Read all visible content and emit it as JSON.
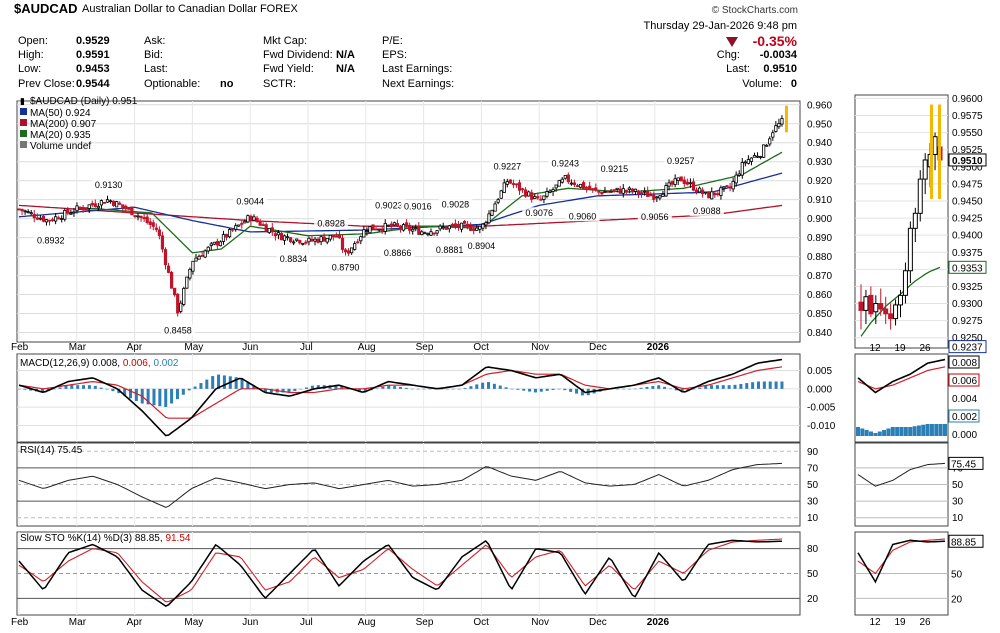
{
  "header": {
    "symbol": "$AUDCAD",
    "description": "Australian Dollar to Canadian Dollar",
    "exchange": "FOREX",
    "copyright": "© StockCharts.com",
    "datetime": "Thursday  29-Jan-2026  9:48 pm",
    "change_pct": "-0.35%",
    "change_label": "Chg:",
    "change_value": "-0.0034",
    "last_label": "Last:",
    "last_value": "0.9510",
    "volume_label": "Volume:",
    "volume_value": "0",
    "quote": [
      {
        "label": "Open:",
        "value": "0.9529"
      },
      {
        "label": "High:",
        "value": "0.9591"
      },
      {
        "label": "Low:",
        "value": "0.9453"
      },
      {
        "label": "Prev Close:",
        "value": "0.9544"
      }
    ],
    "quote2": [
      {
        "label": "Ask:",
        "value": ""
      },
      {
        "label": "Bid:",
        "value": ""
      },
      {
        "label": "Last:",
        "value": ""
      },
      {
        "label": "Optionable:",
        "value": "no"
      }
    ],
    "quote3": [
      {
        "label": "Mkt Cap:",
        "value": ""
      },
      {
        "label": "Fwd Dividend:",
        "value": "N/A"
      },
      {
        "label": "Fwd Yield:",
        "value": "N/A"
      },
      {
        "label": "SCTR:",
        "value": ""
      }
    ],
    "quote4": [
      {
        "label": "P/E:"
      },
      {
        "label": "EPS:"
      },
      {
        "label": "Last Earnings:"
      },
      {
        "label": "Next Earnings:"
      }
    ]
  },
  "colors": {
    "up": "#000000",
    "down": "#c0142a",
    "ma50": "#16309a",
    "ma200": "#b0122c",
    "ma20": "#1d6b1d",
    "macd_hist": "#2a7fb6",
    "rsi_fill": "#4d7a4d",
    "highlight": "#f5b700"
  },
  "chart_data": [
    {
      "type": "candlestick",
      "title": "$AUDCAD (Daily) 0.951",
      "series": [
        {
          "name": "MA(50) 0.924",
          "role": "ma50"
        },
        {
          "name": "MA(200) 0.907",
          "role": "ma200"
        },
        {
          "name": "MA(20) 0.935",
          "role": "ma20"
        },
        {
          "name": "Volume undef",
          "role": "volume"
        }
      ],
      "x_labels": [
        "Feb",
        "Mar",
        "Apr",
        "May",
        "Jun",
        "Jul",
        "Aug",
        "Sep",
        "Oct",
        "Nov",
        "Dec",
        "2026"
      ],
      "y_ticks": [
        "0.960",
        "0.950",
        "0.940",
        "0.930",
        "0.920",
        "0.910",
        "0.900",
        "0.890",
        "0.880",
        "0.870",
        "0.860",
        "0.850",
        "0.840"
      ],
      "ylim": [
        0.835,
        0.962
      ],
      "annotations": [
        {
          "label": "0.8932",
          "month": 0.55,
          "value": 0.8932,
          "pos": "below"
        },
        {
          "label": "0.9130",
          "month": 1.55,
          "value": 0.913,
          "pos": "above"
        },
        {
          "label": "0.8458",
          "month": 2.75,
          "value": 0.8458,
          "pos": "below"
        },
        {
          "label": "0.9044",
          "month": 4.0,
          "value": 0.9044,
          "pos": "above"
        },
        {
          "label": "0.8834",
          "month": 4.75,
          "value": 0.8834,
          "pos": "below"
        },
        {
          "label": "0.8928",
          "month": 5.4,
          "value": 0.8928,
          "pos": "above"
        },
        {
          "label": "0.8790",
          "month": 5.65,
          "value": 0.879,
          "pos": "below"
        },
        {
          "label": "0.9023",
          "month": 6.4,
          "value": 0.9023,
          "pos": "above"
        },
        {
          "label": "0.8866",
          "month": 6.55,
          "value": 0.8866,
          "pos": "below"
        },
        {
          "label": "0.9016",
          "month": 6.9,
          "value": 0.9016,
          "pos": "above"
        },
        {
          "label": "0.8881",
          "month": 7.45,
          "value": 0.8881,
          "pos": "below"
        },
        {
          "label": "0.9028",
          "month": 7.55,
          "value": 0.9028,
          "pos": "above"
        },
        {
          "label": "0.8904",
          "month": 8.0,
          "value": 0.8904,
          "pos": "below"
        },
        {
          "label": "0.9227",
          "month": 8.45,
          "value": 0.9227,
          "pos": "above"
        },
        {
          "label": "0.9076",
          "month": 9.0,
          "value": 0.9076,
          "pos": "below"
        },
        {
          "label": "0.9243",
          "month": 9.45,
          "value": 0.9243,
          "pos": "above"
        },
        {
          "label": "0.9060",
          "month": 9.75,
          "value": 0.906,
          "pos": "below"
        },
        {
          "label": "0.9215",
          "month": 10.3,
          "value": 0.9215,
          "pos": "above"
        },
        {
          "label": "0.9056",
          "month": 11.0,
          "value": 0.9056,
          "pos": "below"
        },
        {
          "label": "0.9257",
          "month": 11.45,
          "value": 0.9257,
          "pos": "above"
        },
        {
          "label": "0.9088",
          "month": 11.9,
          "value": 0.9088,
          "pos": "below"
        }
      ],
      "ohlc_keypoints": [
        {
          "month": 0.0,
          "close": 0.905
        },
        {
          "month": 0.5,
          "close": 0.899
        },
        {
          "month": 1.0,
          "close": 0.905
        },
        {
          "month": 1.55,
          "close": 0.91
        },
        {
          "month": 2.0,
          "close": 0.903
        },
        {
          "month": 2.4,
          "close": 0.894
        },
        {
          "month": 2.75,
          "close": 0.851
        },
        {
          "month": 3.0,
          "close": 0.878
        },
        {
          "month": 3.5,
          "close": 0.889
        },
        {
          "month": 4.0,
          "close": 0.901
        },
        {
          "month": 4.5,
          "close": 0.891
        },
        {
          "month": 5.0,
          "close": 0.888
        },
        {
          "month": 5.5,
          "close": 0.891
        },
        {
          "month": 5.65,
          "close": 0.881
        },
        {
          "month": 6.0,
          "close": 0.895
        },
        {
          "month": 6.5,
          "close": 0.896
        },
        {
          "month": 7.0,
          "close": 0.893
        },
        {
          "month": 7.5,
          "close": 0.896
        },
        {
          "month": 8.0,
          "close": 0.895
        },
        {
          "month": 8.45,
          "close": 0.92
        },
        {
          "month": 9.0,
          "close": 0.909
        },
        {
          "month": 9.45,
          "close": 0.921
        },
        {
          "month": 10.0,
          "close": 0.914
        },
        {
          "month": 10.5,
          "close": 0.915
        },
        {
          "month": 11.0,
          "close": 0.912
        },
        {
          "month": 11.45,
          "close": 0.921
        },
        {
          "month": 11.9,
          "close": 0.912
        },
        {
          "month": 12.3,
          "close": 0.916
        },
        {
          "month": 12.55,
          "close": 0.93
        },
        {
          "month": 12.85,
          "close": 0.935
        },
        {
          "month": 13.05,
          "close": 0.947
        },
        {
          "month": 13.2,
          "close": 0.951
        }
      ],
      "ma50_keypoints": [
        {
          "month": 0.0,
          "value": 0.901
        },
        {
          "month": 2.0,
          "value": 0.906
        },
        {
          "month": 3.0,
          "value": 0.899
        },
        {
          "month": 4.0,
          "value": 0.893
        },
        {
          "month": 6.0,
          "value": 0.894
        },
        {
          "month": 8.0,
          "value": 0.897
        },
        {
          "month": 9.0,
          "value": 0.907
        },
        {
          "month": 10.0,
          "value": 0.912
        },
        {
          "month": 11.0,
          "value": 0.913
        },
        {
          "month": 12.0,
          "value": 0.914
        },
        {
          "month": 13.2,
          "value": 0.924
        }
      ],
      "ma200_keypoints": [
        {
          "month": 0.0,
          "value": 0.907
        },
        {
          "month": 2.0,
          "value": 0.903
        },
        {
          "month": 4.0,
          "value": 0.899
        },
        {
          "month": 6.0,
          "value": 0.896
        },
        {
          "month": 8.0,
          "value": 0.896
        },
        {
          "month": 10.0,
          "value": 0.899
        },
        {
          "month": 12.0,
          "value": 0.902
        },
        {
          "month": 13.2,
          "value": 0.907
        }
      ],
      "ma20_keypoints": [
        {
          "month": 1.0,
          "value": 0.906
        },
        {
          "month": 2.3,
          "value": 0.903
        },
        {
          "month": 3.0,
          "value": 0.882
        },
        {
          "month": 3.5,
          "value": 0.884
        },
        {
          "month": 4.0,
          "value": 0.896
        },
        {
          "month": 5.0,
          "value": 0.891
        },
        {
          "month": 6.0,
          "value": 0.892
        },
        {
          "month": 7.0,
          "value": 0.896
        },
        {
          "month": 8.0,
          "value": 0.895
        },
        {
          "month": 8.7,
          "value": 0.912
        },
        {
          "month": 9.5,
          "value": 0.916
        },
        {
          "month": 10.5,
          "value": 0.914
        },
        {
          "month": 11.5,
          "value": 0.916
        },
        {
          "month": 12.5,
          "value": 0.923
        },
        {
          "month": 13.2,
          "value": 0.935
        }
      ]
    },
    {
      "type": "candlestick",
      "title": "",
      "x_labels": [
        "12",
        "19",
        "26"
      ],
      "y_ticks": [
        "0.9600",
        "0.9575",
        "0.9550",
        "0.9525",
        "0.9500",
        "0.9475",
        "0.9450",
        "0.9425",
        "0.9400",
        "0.9375",
        "0.9350",
        "0.9325",
        "0.9300",
        "0.9275",
        "0.9250"
      ],
      "ylim": [
        0.9235,
        0.9605
      ],
      "markers": [
        {
          "label": "0.9510",
          "value": 0.951
        },
        {
          "label": "0.9353",
          "value": 0.9353
        },
        {
          "label": "0.9237",
          "value": 0.9237
        }
      ],
      "ohlc": [
        {
          "o": 0.9302,
          "h": 0.9328,
          "l": 0.9262,
          "c": 0.929
        },
        {
          "o": 0.929,
          "h": 0.932,
          "l": 0.927,
          "c": 0.931
        },
        {
          "o": 0.9312,
          "h": 0.9325,
          "l": 0.928,
          "c": 0.9285
        },
        {
          "o": 0.9288,
          "h": 0.9312,
          "l": 0.927,
          "c": 0.93
        },
        {
          "o": 0.93,
          "h": 0.9322,
          "l": 0.9282,
          "c": 0.9292
        },
        {
          "o": 0.9292,
          "h": 0.931,
          "l": 0.927,
          "c": 0.9285
        },
        {
          "o": 0.9285,
          "h": 0.93,
          "l": 0.9262,
          "c": 0.9278
        },
        {
          "o": 0.9278,
          "h": 0.9306,
          "l": 0.9268,
          "c": 0.9298
        },
        {
          "o": 0.9298,
          "h": 0.932,
          "l": 0.928,
          "c": 0.9312
        },
        {
          "o": 0.9312,
          "h": 0.936,
          "l": 0.93,
          "c": 0.9348
        },
        {
          "o": 0.9348,
          "h": 0.942,
          "l": 0.933,
          "c": 0.941
        },
        {
          "o": 0.941,
          "h": 0.944,
          "l": 0.939,
          "c": 0.9432
        },
        {
          "o": 0.9432,
          "h": 0.9495,
          "l": 0.942,
          "c": 0.9482
        },
        {
          "o": 0.9482,
          "h": 0.952,
          "l": 0.946,
          "c": 0.951
        },
        {
          "o": 0.95,
          "h": 0.9535,
          "l": 0.947,
          "c": 0.9518
        },
        {
          "o": 0.9518,
          "h": 0.955,
          "l": 0.9495,
          "c": 0.9544
        },
        {
          "o": 0.9529,
          "h": 0.9591,
          "l": 0.9453,
          "c": 0.951
        }
      ],
      "ma20": [
        0.9252,
        0.9262,
        0.9272,
        0.928,
        0.9288,
        0.9296,
        0.9302,
        0.9308,
        0.9314,
        0.932,
        0.9327,
        0.9333,
        0.9338,
        0.9343,
        0.9347,
        0.935,
        0.9353
      ]
    },
    {
      "type": "line",
      "title": "MACD(12,26,9) 0.008, 0.006, 0.002",
      "series": [
        {
          "name": "MACD",
          "values": [
            0.001,
            -0.001,
            0.002,
            0.003,
            0.0,
            -0.006,
            -0.013,
            -0.008,
            0.0,
            0.003,
            -0.001,
            -0.002,
            0.0,
            0.001,
            -0.001,
            0.002,
            0.001,
            0.0,
            0.001,
            0.006,
            0.005,
            0.003,
            0.004,
            -0.001,
            0.0,
            0.001,
            0.003,
            -0.001,
            0.002,
            0.004,
            0.007,
            0.008
          ]
        },
        {
          "name": "Signal",
          "values": [
            0.001,
            0.0,
            0.001,
            0.002,
            0.001,
            -0.002,
            -0.008,
            -0.008,
            -0.004,
            0.0,
            0.0,
            -0.001,
            -0.001,
            0.0,
            0.0,
            0.001,
            0.001,
            0.0,
            0.001,
            0.004,
            0.005,
            0.004,
            0.004,
            0.001,
            0.0,
            0.001,
            0.002,
            0.0,
            0.001,
            0.003,
            0.005,
            0.006
          ]
        },
        {
          "name": "Histogram",
          "values": [
            0.0,
            -0.001,
            0.001,
            0.001,
            -0.001,
            -0.004,
            -0.005,
            0.0,
            0.004,
            0.003,
            -0.001,
            -0.001,
            0.001,
            0.001,
            -0.001,
            0.001,
            0.0,
            0.0,
            0.0,
            0.002,
            0.0,
            -0.001,
            0.0,
            -0.002,
            0.0,
            0.0,
            0.001,
            -0.001,
            0.001,
            0.001,
            0.002,
            0.002
          ]
        }
      ],
      "y_ticks": [
        "0.005",
        "0.000",
        "-0.005",
        "-0.010"
      ],
      "ylim": [
        -0.0145,
        0.0095
      ],
      "zoom_ticks": [
        "0.008",
        "0.006",
        "0.004",
        "0.002",
        "0.000"
      ]
    },
    {
      "type": "line",
      "title": "RSI(14) 75.45",
      "series": [
        {
          "name": "RSI",
          "values": [
            55,
            45,
            55,
            60,
            50,
            35,
            22,
            45,
            58,
            52,
            45,
            50,
            52,
            45,
            50,
            55,
            48,
            50,
            55,
            72,
            60,
            55,
            66,
            52,
            48,
            50,
            62,
            48,
            55,
            68,
            74,
            75.45
          ]
        }
      ],
      "y_ticks": [
        "90",
        "70",
        "50",
        "30",
        "10"
      ],
      "ylim": [
        0,
        100
      ],
      "zoom_marker": "75.45"
    },
    {
      "type": "line",
      "title": "Slow STO %K(14) %D(3) 88.85, 91.54",
      "series": [
        {
          "name": "%K",
          "values": [
            65,
            30,
            75,
            85,
            70,
            30,
            10,
            40,
            85,
            60,
            20,
            50,
            80,
            35,
            65,
            85,
            45,
            30,
            70,
            90,
            30,
            80,
            75,
            25,
            70,
            20,
            75,
            40,
            85,
            90,
            88,
            88.85
          ]
        },
        {
          "name": "%D",
          "values": [
            60,
            40,
            65,
            80,
            75,
            40,
            15,
            30,
            75,
            70,
            30,
            40,
            70,
            45,
            55,
            80,
            55,
            35,
            60,
            85,
            45,
            70,
            78,
            35,
            60,
            30,
            65,
            50,
            78,
            88,
            90,
            91.54
          ]
        }
      ],
      "y_ticks": [
        "80",
        "50",
        "20"
      ],
      "ylim": [
        0,
        100
      ],
      "zoom_ticks": [
        "88.85",
        "50",
        "20"
      ]
    }
  ],
  "zoom_x_labels": [
    "12",
    "19",
    "26"
  ]
}
